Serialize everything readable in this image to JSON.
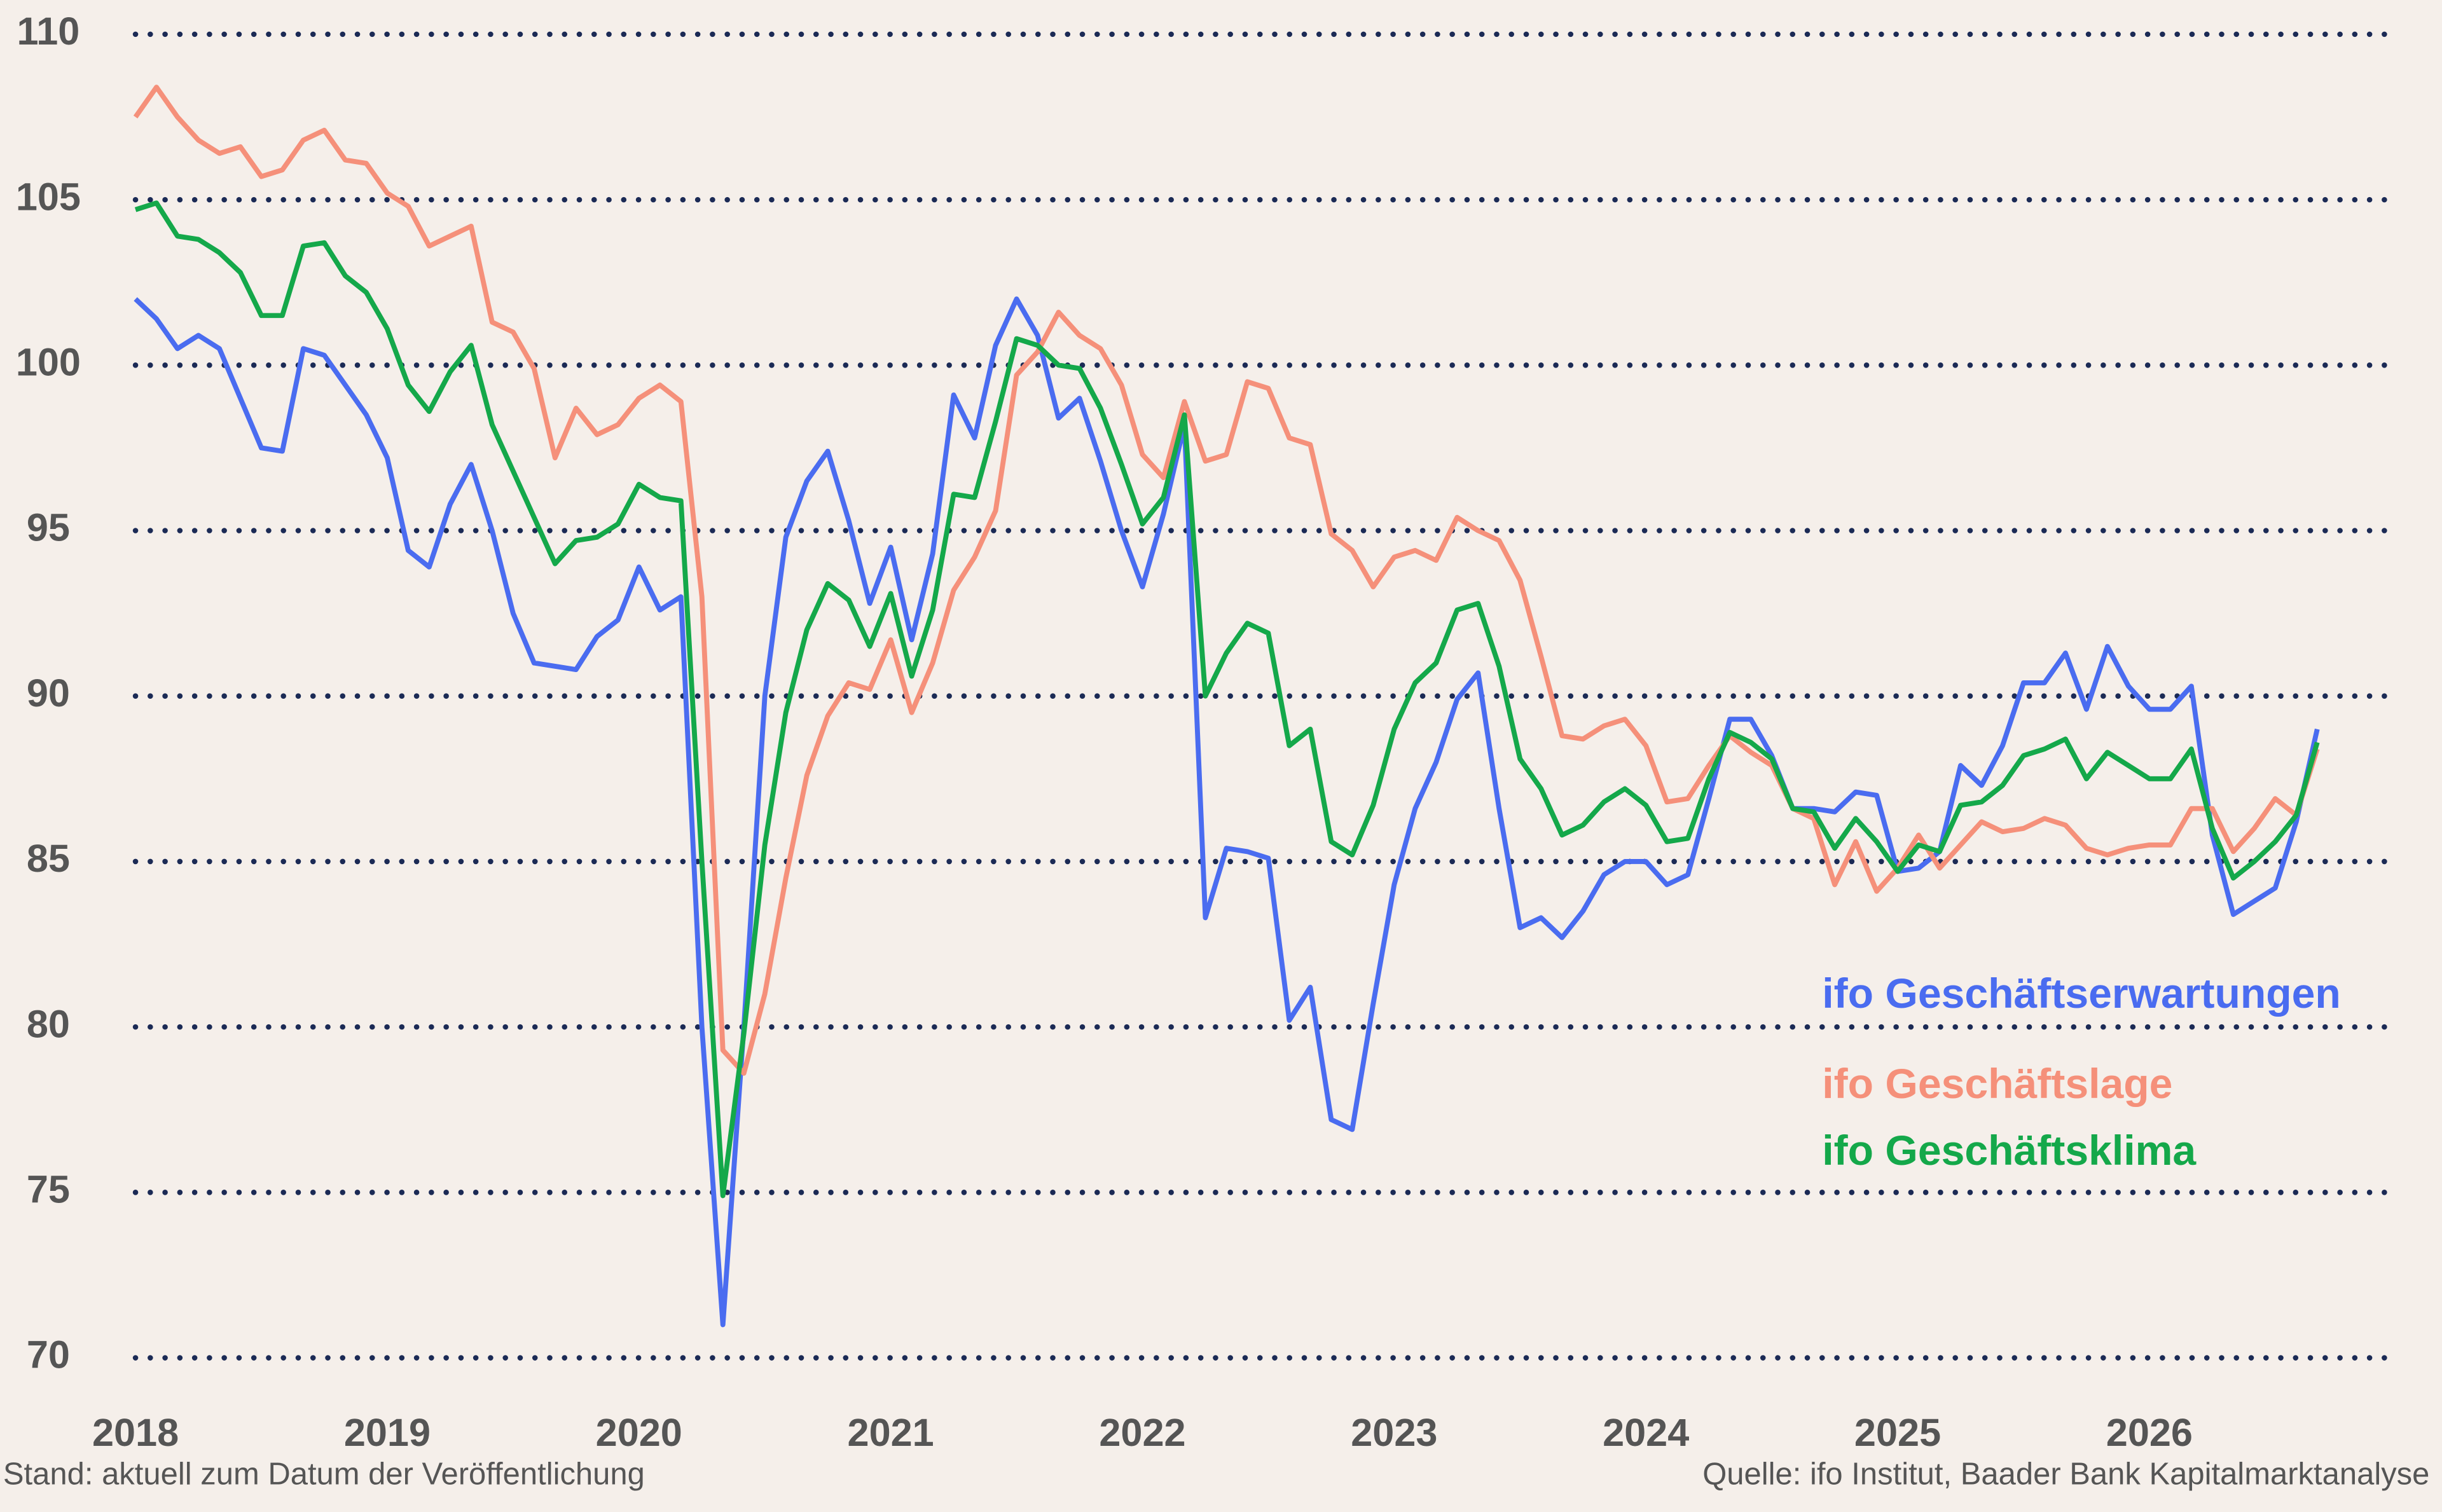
{
  "chart_data": {
    "type": "line",
    "categories": [
      "2018",
      null,
      null,
      null,
      null,
      null,
      null,
      null,
      null,
      null,
      null,
      null,
      "2019",
      null,
      null,
      null,
      null,
      null,
      null,
      null,
      null,
      null,
      null,
      null,
      "2020",
      null,
      null,
      null,
      null,
      null,
      null,
      null,
      null,
      null,
      null,
      null,
      "2021",
      null,
      null,
      null,
      null,
      null,
      null,
      null,
      null,
      null,
      null,
      null,
      "2022",
      null,
      null,
      null,
      null,
      null,
      null,
      null,
      null,
      null,
      null,
      null,
      "2023",
      null,
      null,
      null,
      null,
      null,
      null,
      null,
      null,
      null,
      null,
      null,
      "2024",
      null,
      null,
      null,
      null,
      null,
      null,
      null,
      null,
      null,
      null,
      null,
      "2025",
      null,
      null,
      null,
      null,
      null,
      null,
      null,
      null,
      null,
      null,
      null,
      "2026",
      null,
      null,
      null,
      null,
      null,
      null,
      null,
      null
    ],
    "series": [
      {
        "name": "ifo Geschäftserwartungen",
        "color": "#4a6cf0",
        "values": [
          102.0,
          101.4,
          100.5,
          100.9,
          100.5,
          99.0,
          97.5,
          97.4,
          100.5,
          100.3,
          99.4,
          98.5,
          97.2,
          94.4,
          93.9,
          95.8,
          97.0,
          95.0,
          92.5,
          91.0,
          90.9,
          90.8,
          91.8,
          92.3,
          93.9,
          92.6,
          93.0,
          80.0,
          71.0,
          80.0,
          90.0,
          94.8,
          96.5,
          97.4,
          95.3,
          92.8,
          94.5,
          91.7,
          94.3,
          99.1,
          97.8,
          100.6,
          102.0,
          100.9,
          98.4,
          99.0,
          97.1,
          95.0,
          93.3,
          95.5,
          98.2,
          83.3,
          85.4,
          85.3,
          85.1,
          80.2,
          81.2,
          77.2,
          76.9,
          80.7,
          84.3,
          86.6,
          88.0,
          89.9,
          90.7,
          86.6,
          83.0,
          83.3,
          82.7,
          83.5,
          84.6,
          85.0,
          85.0,
          84.3,
          84.6,
          86.9,
          89.3,
          89.3,
          88.2,
          86.6,
          86.6,
          86.5,
          87.1,
          87.0,
          84.7,
          84.8,
          85.3,
          87.9,
          87.3,
          88.5,
          90.4,
          90.4,
          91.3,
          89.6,
          91.5,
          90.3,
          89.6,
          89.6,
          90.3,
          85.8,
          83.4,
          83.8,
          84.2,
          86.2,
          89.0
        ]
      },
      {
        "name": "ifo Geschäftslage",
        "color": "#f5907a",
        "values": [
          107.5,
          108.4,
          107.5,
          106.8,
          106.4,
          106.6,
          105.7,
          105.9,
          106.8,
          107.1,
          106.2,
          106.1,
          105.2,
          104.8,
          103.6,
          103.9,
          104.2,
          101.3,
          101.0,
          99.9,
          97.2,
          98.7,
          97.9,
          98.2,
          99.0,
          99.4,
          98.9,
          93.0,
          79.3,
          78.6,
          81.0,
          84.5,
          87.6,
          89.4,
          90.4,
          90.2,
          91.7,
          89.5,
          91.0,
          93.2,
          94.2,
          95.6,
          99.7,
          100.4,
          101.6,
          100.9,
          100.5,
          99.4,
          97.3,
          96.6,
          98.9,
          97.1,
          97.3,
          99.5,
          99.3,
          97.8,
          97.6,
          94.9,
          94.4,
          93.3,
          94.2,
          94.4,
          94.1,
          95.4,
          95.0,
          94.7,
          93.5,
          91.2,
          88.8,
          88.7,
          89.1,
          89.3,
          88.5,
          86.8,
          86.9,
          87.9,
          88.8,
          88.3,
          87.9,
          86.6,
          86.3,
          84.3,
          85.6,
          84.1,
          84.8,
          85.8,
          84.8,
          85.5,
          86.2,
          85.9,
          86.0,
          86.3,
          86.1,
          85.4,
          85.2,
          85.4,
          85.5,
          85.5,
          86.6,
          86.6,
          85.3,
          86.0,
          86.9,
          86.4,
          88.4
        ]
      },
      {
        "name": "ifo Geschäftsklima",
        "color": "#14a84a",
        "values": [
          104.7,
          104.9,
          103.9,
          103.8,
          103.4,
          102.8,
          101.5,
          101.5,
          103.6,
          103.7,
          102.7,
          102.2,
          101.1,
          99.4,
          98.6,
          99.8,
          100.6,
          98.2,
          96.8,
          95.4,
          94.0,
          94.7,
          94.8,
          95.2,
          96.4,
          96.0,
          95.9,
          85.0,
          74.9,
          79.8,
          85.5,
          89.5,
          92.0,
          93.4,
          92.9,
          91.5,
          93.1,
          90.6,
          92.6,
          96.1,
          96.0,
          98.3,
          100.8,
          100.6,
          100.0,
          99.9,
          98.7,
          97.0,
          95.2,
          96.0,
          98.5,
          90.0,
          91.3,
          92.2,
          91.9,
          88.5,
          89.0,
          85.6,
          85.2,
          86.7,
          89.0,
          90.4,
          91.0,
          92.6,
          92.8,
          90.9,
          88.1,
          87.2,
          85.8,
          86.1,
          86.8,
          87.2,
          86.7,
          85.6,
          85.7,
          87.5,
          88.9,
          88.6,
          88.1,
          86.6,
          86.5,
          85.4,
          86.3,
          85.6,
          84.7,
          85.5,
          85.3,
          86.7,
          86.8,
          87.3,
          88.2,
          88.4,
          88.7,
          87.5,
          88.3,
          87.9,
          87.5,
          87.5,
          88.4,
          86.0,
          84.5,
          85.0,
          85.6,
          86.4,
          88.6
        ]
      }
    ],
    "ylim": [
      70,
      110
    ],
    "yticks": [
      70,
      75,
      80,
      85,
      90,
      95,
      100,
      105,
      110
    ],
    "grid": true,
    "notes": {
      "left": "Stand: aktuell zum Datum der Veröffentlichung",
      "right": "Quelle: ifo Institut, Baader Bank Kapitalmarktanalyse"
    }
  }
}
